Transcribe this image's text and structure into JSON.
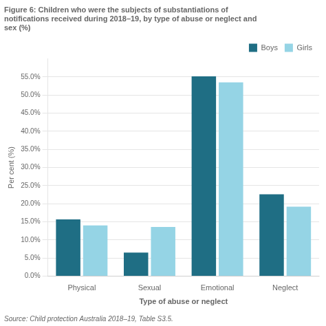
{
  "chart_data": {
    "type": "bar",
    "title": [
      "Figure 6: Children who were the subjects of substantiations of",
      "notifications received during 2018–19, by type of abuse or neglect and",
      "sex (%)"
    ],
    "categories": [
      "Physical",
      "Sexual",
      "Emotional",
      "Neglect"
    ],
    "series": [
      {
        "name": "Boys",
        "color": "#1f6e84",
        "values": [
          15.7,
          6.5,
          55.2,
          22.6
        ]
      },
      {
        "name": "Girls",
        "color": "#95d4e5",
        "values": [
          14.0,
          13.6,
          53.5,
          19.2
        ]
      }
    ],
    "x_label": "Type of abuse or neglect",
    "y_label": "Per cent (%)",
    "ylim": [
      0,
      60
    ],
    "yticks": [
      {
        "value": 0,
        "label": "0.0%"
      },
      {
        "value": 5,
        "label": "5.0%"
      },
      {
        "value": 10,
        "label": "10.0%"
      },
      {
        "value": 15,
        "label": "15.0%"
      },
      {
        "value": 20,
        "label": "20.0%"
      },
      {
        "value": 25,
        "label": "25.0%"
      },
      {
        "value": 30,
        "label": "30.0%"
      },
      {
        "value": 35,
        "label": "35.0%"
      },
      {
        "value": 40,
        "label": "40.0%"
      },
      {
        "value": 45,
        "label": "45.0%"
      },
      {
        "value": 50,
        "label": "50.0%"
      },
      {
        "value": 55,
        "label": "55.0%"
      }
    ],
    "grid": true,
    "legend": "upper right",
    "source": "Source: Child protection Australia 2018–19, Table S3.5."
  }
}
